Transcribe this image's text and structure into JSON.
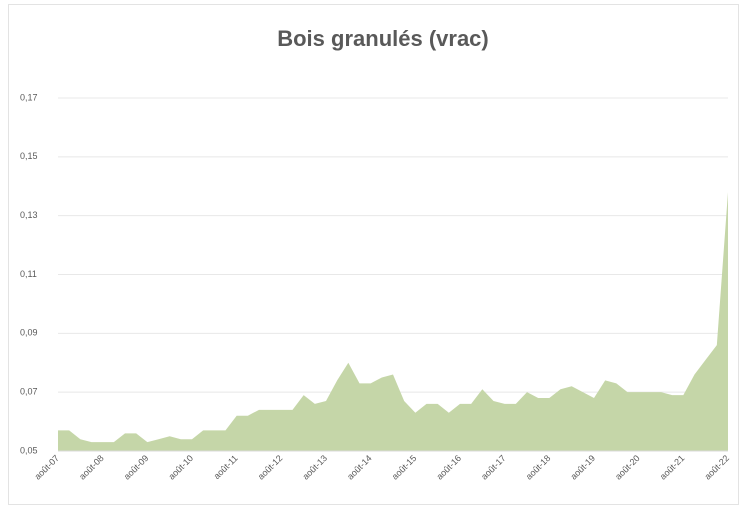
{
  "chart_data": {
    "type": "area",
    "title": "Bois granulés (vrac)",
    "categories": [
      "août-07",
      null,
      null,
      null,
      "août-08",
      null,
      null,
      null,
      "août-09",
      null,
      null,
      null,
      "août-10",
      null,
      null,
      null,
      "août-11",
      null,
      null,
      null,
      "août-12",
      null,
      null,
      null,
      "août-13",
      null,
      null,
      null,
      "août-14",
      null,
      null,
      null,
      "août-15",
      null,
      null,
      null,
      "août-16",
      null,
      null,
      null,
      "août-17",
      null,
      null,
      null,
      "août-18",
      null,
      null,
      null,
      "août-19",
      null,
      null,
      null,
      "août-20",
      null,
      null,
      null,
      "août-21",
      null,
      null,
      null,
      "août-22"
    ],
    "values": [
      0.057,
      0.057,
      0.054,
      0.053,
      0.053,
      0.053,
      0.056,
      0.056,
      0.053,
      0.054,
      0.055,
      0.054,
      0.054,
      0.057,
      0.057,
      0.057,
      0.062,
      0.062,
      0.064,
      0.064,
      0.064,
      0.064,
      0.069,
      0.066,
      0.067,
      0.074,
      0.08,
      0.073,
      0.073,
      0.075,
      0.076,
      0.067,
      0.063,
      0.066,
      0.066,
      0.063,
      0.066,
      0.066,
      0.071,
      0.067,
      0.066,
      0.066,
      0.07,
      0.068,
      0.068,
      0.071,
      0.072,
      0.07,
      0.068,
      0.074,
      0.073,
      0.07,
      0.07,
      0.07,
      0.07,
      0.069,
      0.069,
      0.076,
      0.081,
      0.086,
      0.138
    ],
    "color": "#c5d6a8",
    "ylim": [
      0.05,
      0.17
    ],
    "yticks": [
      {
        "value": 0.05,
        "label": "0,05"
      },
      {
        "value": 0.07,
        "label": "0,07"
      },
      {
        "value": 0.09,
        "label": "0,09"
      },
      {
        "value": 0.11,
        "label": "0,11"
      },
      {
        "value": 0.13,
        "label": "0,13"
      },
      {
        "value": 0.15,
        "label": "0,15"
      },
      {
        "value": 0.17,
        "label": "0,17"
      }
    ],
    "grid": true
  }
}
